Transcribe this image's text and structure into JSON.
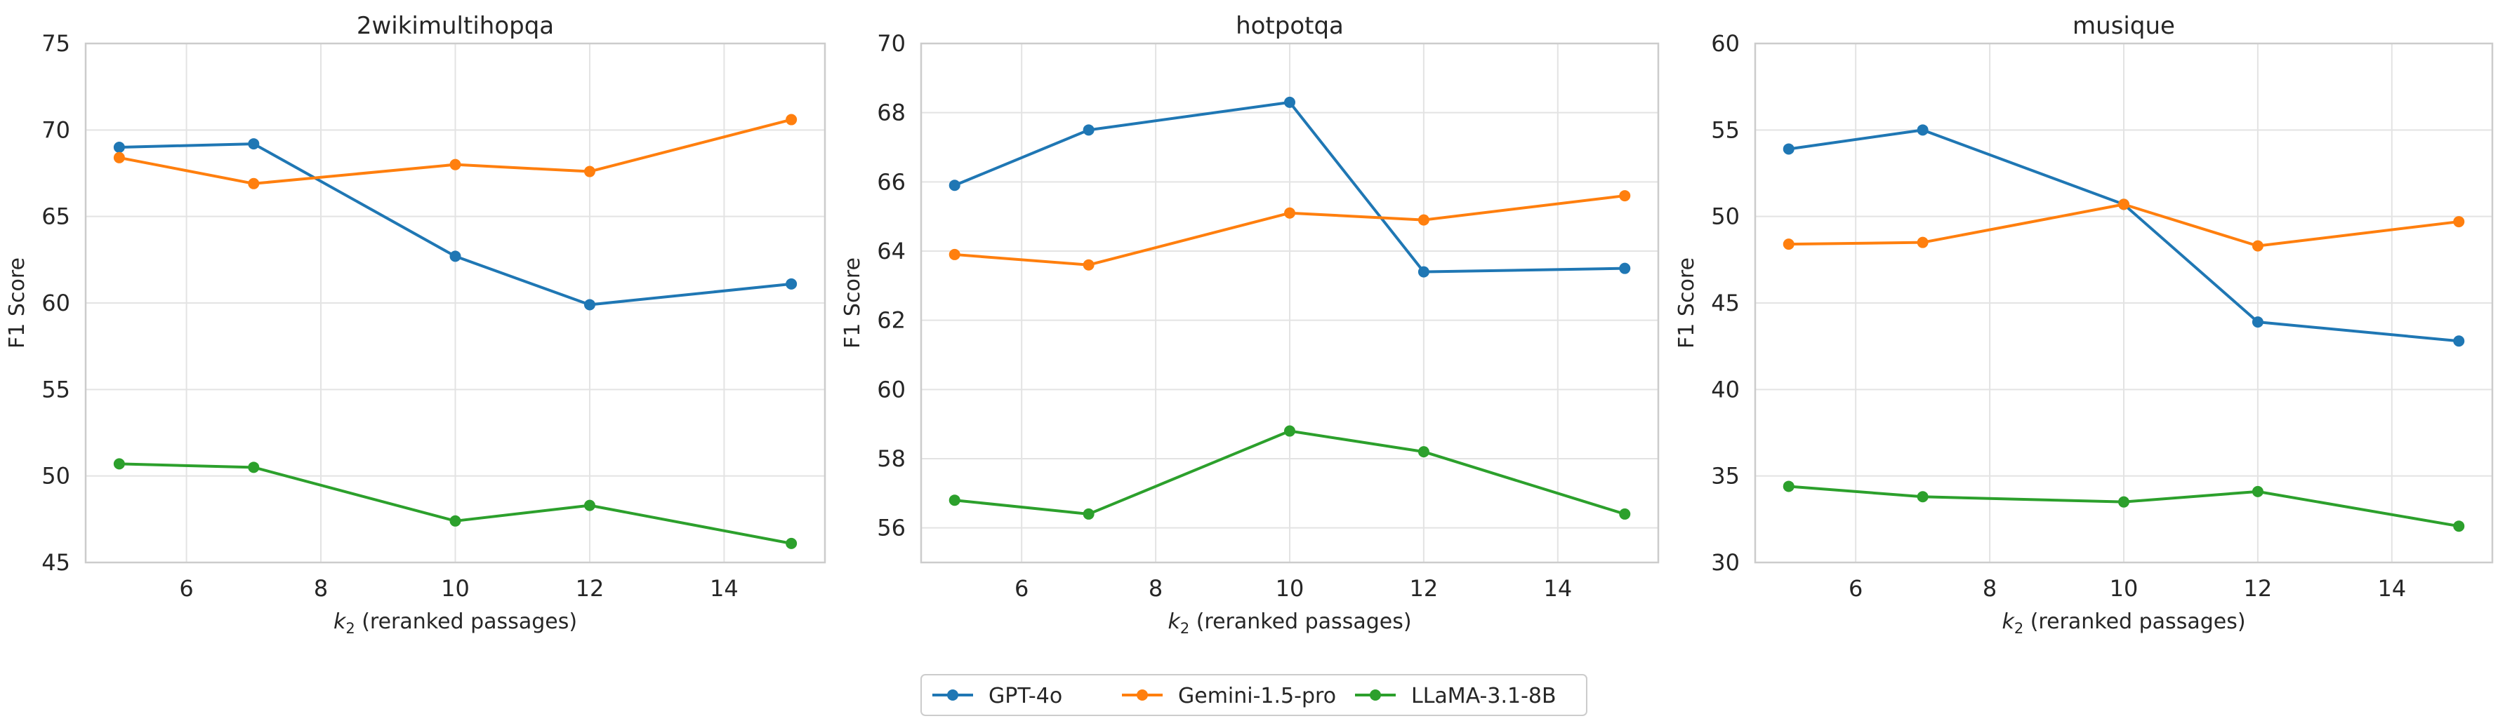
{
  "figure": {
    "legend": [
      {
        "name": "GPT-4o",
        "color": "#1f77b4"
      },
      {
        "name": "Gemini-1.5-pro",
        "color": "#ff7f0e"
      },
      {
        "name": "LLaMA-3.1-8B",
        "color": "#2ca02c"
      }
    ],
    "legend_placement": "bottom-center"
  },
  "chart_data": [
    {
      "type": "line",
      "title": "2wikimultihopqa",
      "xlabel_var": "k",
      "xlabel_sub": "2",
      "xlabel_rest": " (reranked passages)",
      "ylabel": "F1 Score",
      "x": [
        5,
        7,
        10,
        12,
        15
      ],
      "xlim": [
        4.5,
        15.5
      ],
      "ylim": [
        45,
        75
      ],
      "xticks": [
        6,
        8,
        10,
        12,
        14
      ],
      "yticks": [
        45,
        50,
        55,
        60,
        65,
        70,
        75
      ],
      "grid": true,
      "series": [
        {
          "name": "GPT-4o",
          "color": "#1f77b4",
          "values": [
            69.0,
            69.2,
            62.7,
            59.9,
            61.1
          ]
        },
        {
          "name": "Gemini-1.5-pro",
          "color": "#ff7f0e",
          "values": [
            68.4,
            66.9,
            68.0,
            67.6,
            70.6
          ]
        },
        {
          "name": "LLaMA-3.1-8B",
          "color": "#2ca02c",
          "values": [
            50.7,
            50.5,
            47.4,
            48.3,
            46.1
          ]
        }
      ]
    },
    {
      "type": "line",
      "title": "hotpotqa",
      "xlabel_var": "k",
      "xlabel_sub": "2",
      "xlabel_rest": " (reranked passages)",
      "ylabel": "F1 Score",
      "x": [
        5,
        7,
        10,
        12,
        15
      ],
      "xlim": [
        4.5,
        15.5
      ],
      "ylim": [
        55,
        70
      ],
      "xticks": [
        6,
        8,
        10,
        12,
        14
      ],
      "yticks": [
        56,
        58,
        60,
        62,
        64,
        66,
        68,
        70
      ],
      "grid": true,
      "series": [
        {
          "name": "GPT-4o",
          "color": "#1f77b4",
          "values": [
            65.9,
            67.5,
            68.3,
            63.4,
            63.5
          ]
        },
        {
          "name": "Gemini-1.5-pro",
          "color": "#ff7f0e",
          "values": [
            63.9,
            63.6,
            65.1,
            64.9,
            65.6
          ]
        },
        {
          "name": "LLaMA-3.1-8B",
          "color": "#2ca02c",
          "values": [
            56.8,
            56.4,
            58.8,
            58.2,
            56.4
          ]
        }
      ]
    },
    {
      "type": "line",
      "title": "musique",
      "xlabel_var": "k",
      "xlabel_sub": "2",
      "xlabel_rest": " (reranked passages)",
      "ylabel": "F1 Score",
      "x": [
        5,
        7,
        10,
        12,
        15
      ],
      "xlim": [
        4.5,
        15.5
      ],
      "ylim": [
        30,
        60
      ],
      "xticks": [
        6,
        8,
        10,
        12,
        14
      ],
      "yticks": [
        30,
        35,
        40,
        45,
        50,
        55,
        60
      ],
      "grid": true,
      "series": [
        {
          "name": "GPT-4o",
          "color": "#1f77b4",
          "values": [
            53.9,
            55.0,
            50.7,
            43.9,
            42.8
          ]
        },
        {
          "name": "Gemini-1.5-pro",
          "color": "#ff7f0e",
          "values": [
            48.4,
            48.5,
            50.7,
            48.3,
            49.7
          ]
        },
        {
          "name": "LLaMA-3.1-8B",
          "color": "#2ca02c",
          "values": [
            34.4,
            33.8,
            33.5,
            34.1,
            32.1
          ]
        }
      ]
    }
  ]
}
